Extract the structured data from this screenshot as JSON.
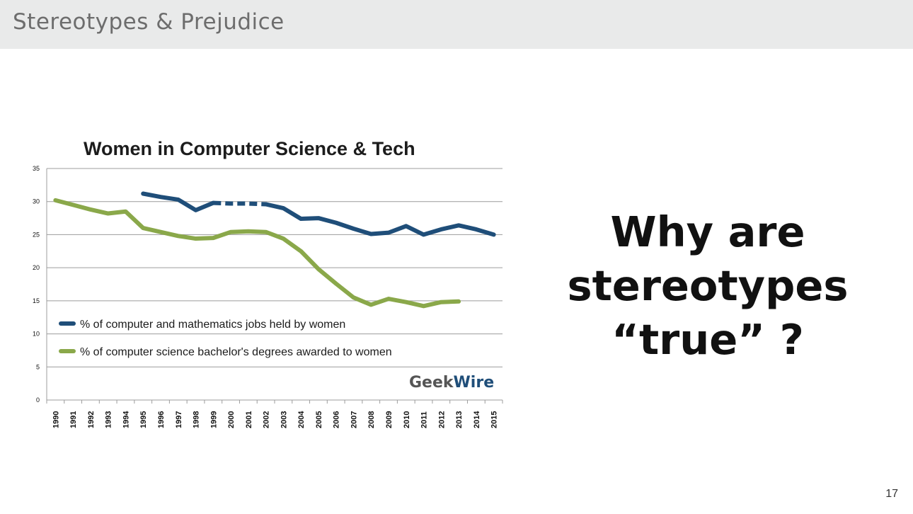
{
  "header": {
    "title": "Stereotypes & Prejudice"
  },
  "side_text": {
    "lines": [
      "Why are",
      "stereotypes",
      "“true” ?"
    ]
  },
  "page_number": "17",
  "logo": {
    "text_left": "Geek",
    "text_right": "Wire"
  },
  "colors": {
    "series_jobs": "#1f4e79",
    "series_degrees": "#8aa84a",
    "grid": "#9c9c9c"
  },
  "chart_data": {
    "type": "line",
    "title": "Women in Computer Science & Tech",
    "xlabel": "",
    "ylabel": "",
    "ylim": [
      0,
      35
    ],
    "yticks": [
      "0",
      "5",
      "10",
      "15",
      "20",
      "25",
      "30",
      "35"
    ],
    "grid": true,
    "legend_position": "inside-lower-left",
    "categories": [
      "1990",
      "1991",
      "1992",
      "1993",
      "1994",
      "1995",
      "1996",
      "1997",
      "1998",
      "1999",
      "2000",
      "2001",
      "2002",
      "2003",
      "2004",
      "2005",
      "2006",
      "2007",
      "2008",
      "2009",
      "2010",
      "2011",
      "2012",
      "2013",
      "2014",
      "2015"
    ],
    "series": [
      {
        "name": "% of computer and mathematics jobs held by women",
        "color": "#1f4e79",
        "values": [
          null,
          null,
          null,
          null,
          null,
          31.2,
          30.7,
          30.3,
          28.7,
          29.8,
          29.7,
          29.7,
          29.6,
          29.0,
          27.4,
          27.5,
          26.8,
          25.9,
          25.1,
          25.3,
          26.3,
          25.0,
          25.8,
          26.4,
          25.8,
          25.0
        ],
        "dashed_segments": [
          [
            1999,
            2002
          ]
        ]
      },
      {
        "name": "% of computer science bachelor's degrees awarded to women",
        "color": "#8aa84a",
        "values": [
          30.2,
          29.5,
          28.8,
          28.2,
          28.5,
          26.0,
          25.4,
          24.8,
          24.4,
          24.5,
          25.4,
          25.5,
          25.4,
          24.4,
          22.5,
          19.8,
          17.6,
          15.5,
          14.4,
          15.3,
          14.8,
          14.2,
          14.8,
          14.9,
          null,
          null
        ]
      }
    ]
  }
}
